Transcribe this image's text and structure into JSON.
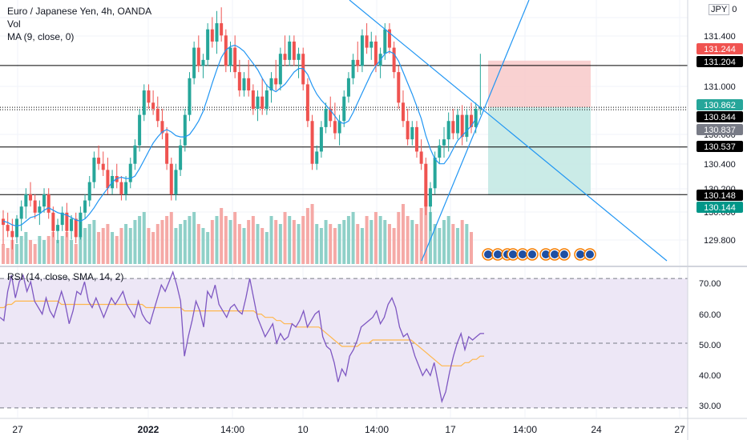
{
  "header": {
    "symbol_line": "Euro / Japanese Yen, 4h, OANDA",
    "vol_label": "Vol",
    "ma_label": "MA (9, close, 0)",
    "currency_label": "JPY",
    "currency_suffix": "0"
  },
  "colors": {
    "up": "#26a69a",
    "down": "#ef5350",
    "up_vol": "#8fd0c8",
    "down_vol": "#f5a9a6",
    "ma": "#2196f3",
    "trendline": "#2962ff",
    "rsi_line": "#7e57c2",
    "rsi_sma": "#ffb74d",
    "rsi_band": "#ede7f6",
    "stop_zone": "#f8c9c9",
    "target_zone": "#c4e9e4",
    "hline": "#000000"
  },
  "chart_data": [
    {
      "type": "candlestick",
      "title": "Euro / Japanese Yen, 4h, OANDA",
      "ylim": [
        129.58,
        131.74
      ],
      "price_ticks": [
        "131.400",
        "131.000",
        "130.600",
        "130.400",
        "130.200",
        "130.000",
        "129.800"
      ],
      "time_ticks": [
        "27",
        "2022",
        "14:00",
        "10",
        "14:00",
        "17",
        "14:00",
        "24",
        "27"
      ],
      "ohlc": [
        [
          129.95,
          130.02,
          129.74,
          129.9
        ],
        [
          129.9,
          130.0,
          129.8,
          129.85
        ],
        [
          129.85,
          129.95,
          129.7,
          129.8
        ],
        [
          129.8,
          129.98,
          129.75,
          129.95
        ],
        [
          129.95,
          130.1,
          129.85,
          130.05
        ],
        [
          130.05,
          130.2,
          129.95,
          130.15
        ],
        [
          130.15,
          130.25,
          130.05,
          130.1
        ],
        [
          130.1,
          130.15,
          129.95,
          130.0
        ],
        [
          130.0,
          130.1,
          129.9,
          130.05
        ],
        [
          130.05,
          130.2,
          130.0,
          130.15
        ],
        [
          130.15,
          130.2,
          129.95,
          130.0
        ],
        [
          130.0,
          130.05,
          129.8,
          129.85
        ],
        [
          129.85,
          129.95,
          129.75,
          129.9
        ],
        [
          129.9,
          130.05,
          129.85,
          130.0
        ],
        [
          130.0,
          130.08,
          129.8,
          129.85
        ],
        [
          129.85,
          129.98,
          129.78,
          129.95
        ],
        [
          129.95,
          130.0,
          129.75,
          129.8
        ],
        [
          129.8,
          130.05,
          129.78,
          130.0
        ],
        [
          130.0,
          130.15,
          129.95,
          130.1
        ],
        [
          130.1,
          130.3,
          130.05,
          130.25
        ],
        [
          130.25,
          130.5,
          130.2,
          130.45
        ],
        [
          130.45,
          130.55,
          130.35,
          130.4
        ],
        [
          130.4,
          130.5,
          130.3,
          130.35
        ],
        [
          130.35,
          130.45,
          130.15,
          130.2
        ],
        [
          130.2,
          130.35,
          130.15,
          130.3
        ],
        [
          130.3,
          130.4,
          130.2,
          130.25
        ],
        [
          130.25,
          130.3,
          130.1,
          130.15
        ],
        [
          130.15,
          130.3,
          130.1,
          130.25
        ],
        [
          130.25,
          130.45,
          130.2,
          130.4
        ],
        [
          130.4,
          130.6,
          130.35,
          130.55
        ],
        [
          130.55,
          130.85,
          130.5,
          130.8
        ],
        [
          130.8,
          131.05,
          130.75,
          131.0
        ],
        [
          131.0,
          131.05,
          130.85,
          130.9
        ],
        [
          130.9,
          131.0,
          130.8,
          130.85
        ],
        [
          130.85,
          130.95,
          130.7,
          130.75
        ],
        [
          130.75,
          130.85,
          130.6,
          130.65
        ],
        [
          130.65,
          130.7,
          130.35,
          130.4
        ],
        [
          130.4,
          130.45,
          130.1,
          130.15
        ],
        [
          130.15,
          130.4,
          130.1,
          130.35
        ],
        [
          130.35,
          130.6,
          130.3,
          130.55
        ],
        [
          130.55,
          130.85,
          130.5,
          130.8
        ],
        [
          130.8,
          131.15,
          130.75,
          131.1
        ],
        [
          131.1,
          131.4,
          131.05,
          131.35
        ],
        [
          131.35,
          131.45,
          131.15,
          131.2
        ],
        [
          131.2,
          131.3,
          131.1,
          131.25
        ],
        [
          131.25,
          131.55,
          131.2,
          131.5
        ],
        [
          131.5,
          131.6,
          131.35,
          131.4
        ],
        [
          131.4,
          131.65,
          131.3,
          131.55
        ],
        [
          131.55,
          131.68,
          131.4,
          131.45
        ],
        [
          131.45,
          131.5,
          131.15,
          131.2
        ],
        [
          131.2,
          131.4,
          131.15,
          131.35
        ],
        [
          131.35,
          131.45,
          131.1,
          131.15
        ],
        [
          131.15,
          131.25,
          130.95,
          131.0
        ],
        [
          131.0,
          131.15,
          130.95,
          131.1
        ],
        [
          131.1,
          131.25,
          130.95,
          131.0
        ],
        [
          131.0,
          131.05,
          130.8,
          130.85
        ],
        [
          130.85,
          131.0,
          130.75,
          130.95
        ],
        [
          130.95,
          131.1,
          130.8,
          130.85
        ],
        [
          130.85,
          131.05,
          130.8,
          131.0
        ],
        [
          131.0,
          131.15,
          130.9,
          131.1
        ],
        [
          131.1,
          131.25,
          131.0,
          131.05
        ],
        [
          131.05,
          131.35,
          131.0,
          131.3
        ],
        [
          131.3,
          131.45,
          131.2,
          131.25
        ],
        [
          131.25,
          131.45,
          131.2,
          131.4
        ],
        [
          131.4,
          131.45,
          131.2,
          131.25
        ],
        [
          131.25,
          131.35,
          131.1,
          131.3
        ],
        [
          131.3,
          131.35,
          131.0,
          131.05
        ],
        [
          131.05,
          131.1,
          130.7,
          130.75
        ],
        [
          130.75,
          130.8,
          130.35,
          130.4
        ],
        [
          130.4,
          130.55,
          130.35,
          130.5
        ],
        [
          130.5,
          130.75,
          130.45,
          130.7
        ],
        [
          130.7,
          130.9,
          130.65,
          130.85
        ],
        [
          130.85,
          130.95,
          130.7,
          130.75
        ],
        [
          130.75,
          130.9,
          130.6,
          130.65
        ],
        [
          130.65,
          130.8,
          130.55,
          130.75
        ],
        [
          130.75,
          131.0,
          130.7,
          130.95
        ],
        [
          130.95,
          131.15,
          130.9,
          131.1
        ],
        [
          131.1,
          131.3,
          131.05,
          131.25
        ],
        [
          131.25,
          131.4,
          131.15,
          131.2
        ],
        [
          131.2,
          131.5,
          131.15,
          131.45
        ],
        [
          131.45,
          131.55,
          131.3,
          131.35
        ],
        [
          131.35,
          131.48,
          131.25,
          131.4
        ],
        [
          131.4,
          131.45,
          131.15,
          131.2
        ],
        [
          131.2,
          131.35,
          131.1,
          131.3
        ],
        [
          131.3,
          131.55,
          131.25,
          131.5
        ],
        [
          131.5,
          131.55,
          131.3,
          131.35
        ],
        [
          131.35,
          131.4,
          131.1,
          131.15
        ],
        [
          131.15,
          131.2,
          130.85,
          130.9
        ],
        [
          130.9,
          131.0,
          130.7,
          130.75
        ],
        [
          130.75,
          130.85,
          130.55,
          130.6
        ],
        [
          130.6,
          130.75,
          130.55,
          130.7
        ],
        [
          130.7,
          130.75,
          130.45,
          130.5
        ],
        [
          130.5,
          130.6,
          130.35,
          130.4
        ],
        [
          130.4,
          130.45,
          129.98,
          130.05
        ],
        [
          130.05,
          130.25,
          129.85,
          130.2
        ],
        [
          130.2,
          130.5,
          130.15,
          130.45
        ],
        [
          130.45,
          130.6,
          130.4,
          130.55
        ],
        [
          130.55,
          130.7,
          130.45,
          130.6
        ],
        [
          130.6,
          130.82,
          130.5,
          130.75
        ],
        [
          130.75,
          130.85,
          130.6,
          130.65
        ],
        [
          130.65,
          130.85,
          130.6,
          130.8
        ],
        [
          130.8,
          130.88,
          130.55,
          130.62
        ],
        [
          130.62,
          130.85,
          130.58,
          130.8
        ],
        [
          130.8,
          130.9,
          130.65,
          130.7
        ],
        [
          130.7,
          130.9,
          130.65,
          130.85
        ],
        [
          130.85,
          131.3,
          130.8,
          130.86
        ]
      ],
      "moving_average": {
        "name": "MA (9, close, 0)",
        "values": [
          129.93,
          129.92,
          129.9,
          129.89,
          129.9,
          129.93,
          129.96,
          129.97,
          129.99,
          130.02,
          130.04,
          130.02,
          130.0,
          129.99,
          129.98,
          129.96,
          129.94,
          129.93,
          129.95,
          129.99,
          130.04,
          130.1,
          130.15,
          130.2,
          130.25,
          130.28,
          130.29,
          130.28,
          130.28,
          130.3,
          130.36,
          130.43,
          130.5,
          130.57,
          130.62,
          130.66,
          130.68,
          130.66,
          130.63,
          130.62,
          130.62,
          130.64,
          130.69,
          130.75,
          130.83,
          130.94,
          131.06,
          131.17,
          131.27,
          131.33,
          131.36,
          131.37,
          131.35,
          131.32,
          131.27,
          131.22,
          131.17,
          131.1,
          131.04,
          131.01,
          130.99,
          131.02,
          131.05,
          131.1,
          131.15,
          131.18,
          131.18,
          131.13,
          131.04,
          130.97,
          130.92,
          130.88,
          130.84,
          130.79,
          130.74,
          130.73,
          130.75,
          130.82,
          130.9,
          130.98,
          131.06,
          131.14,
          131.2,
          131.25,
          131.3,
          131.32,
          131.3,
          131.24,
          131.15,
          131.06,
          130.97,
          130.87,
          130.77,
          130.63,
          130.52,
          130.44,
          130.4,
          130.4,
          130.45,
          130.52,
          130.59,
          130.63,
          130.67,
          130.71,
          130.77
        ]
      },
      "volume": [
        5,
        4,
        6,
        5,
        7,
        8,
        6,
        5,
        7,
        6,
        7,
        8,
        6,
        7,
        8,
        6,
        5,
        7,
        9,
        10,
        11,
        8,
        9,
        10,
        8,
        7,
        9,
        10,
        9,
        11,
        12,
        13,
        9,
        8,
        10,
        11,
        12,
        13,
        9,
        10,
        11,
        12,
        13,
        10,
        9,
        8,
        11,
        12,
        14,
        12,
        11,
        13,
        10,
        9,
        11,
        12,
        10,
        9,
        8,
        12,
        11,
        10,
        13,
        12,
        11,
        10,
        12,
        14,
        15,
        10,
        9,
        11,
        10,
        9,
        10,
        11,
        12,
        13,
        10,
        9,
        12,
        11,
        13,
        12,
        11,
        10,
        9,
        13,
        15,
        12,
        11,
        10,
        14,
        16,
        13,
        10,
        9,
        11,
        12,
        10,
        9,
        11,
        10,
        8
      ],
      "horizontal_levels": [
        131.204,
        130.537,
        130.148
      ],
      "position": {
        "entry": 130.862,
        "stop": 131.244,
        "target": 130.144
      },
      "price_labels": [
        {
          "text": "131.244",
          "kind": "stop"
        },
        {
          "text": "131.204",
          "kind": "level"
        },
        {
          "text": "130.862",
          "kind": "last"
        },
        {
          "text": "130.844",
          "kind": "level-dark"
        },
        {
          "text": "130.837",
          "kind": "gray"
        },
        {
          "text": "130.537",
          "kind": "level"
        },
        {
          "text": "130.148",
          "kind": "level"
        },
        {
          "text": "130.144",
          "kind": "target"
        }
      ]
    },
    {
      "type": "line",
      "title": "RSI (14, close, SMA, 14, 2)",
      "ylim": [
        27,
        73
      ],
      "y_ticks": [
        "70.00",
        "60.00",
        "50.00",
        "40.00",
        "30.00"
      ],
      "bands": [
        30,
        50,
        70
      ],
      "series": [
        {
          "name": "RSI",
          "values": [
            58,
            57,
            66,
            71,
            64,
            69,
            71,
            66,
            69,
            63,
            61,
            59,
            64,
            60,
            58,
            62,
            66,
            62,
            56,
            60,
            66,
            65,
            69,
            63,
            61,
            64,
            61,
            58,
            61,
            64,
            62,
            64,
            66,
            62,
            60,
            58,
            63,
            59,
            57,
            56,
            60,
            64,
            68,
            66,
            69,
            72,
            68,
            63,
            46,
            52,
            57,
            63,
            60,
            55,
            66,
            64,
            68,
            62,
            60,
            58,
            61,
            62,
            60,
            59,
            64,
            70,
            64,
            58,
            55,
            52,
            54,
            56,
            50,
            53,
            51,
            52,
            56,
            55,
            57,
            60,
            55,
            57,
            59,
            60,
            52,
            49,
            48,
            44,
            38,
            42,
            40,
            46,
            48,
            51,
            55,
            56,
            57,
            58,
            60,
            56,
            58,
            62,
            64,
            61,
            55,
            52,
            53,
            50,
            46,
            43,
            40,
            42,
            40,
            44,
            38,
            32,
            35,
            41,
            46,
            50,
            53,
            48,
            52,
            51,
            52,
            53,
            53
          ]
        },
        {
          "name": "SMA",
          "values": [
            61,
            61,
            62,
            62,
            63,
            63,
            63,
            63,
            63,
            63,
            63,
            63,
            63,
            63,
            63,
            63,
            62,
            62,
            62,
            62,
            62,
            62,
            62,
            62,
            62,
            62,
            62,
            62,
            62,
            62,
            62,
            62,
            62,
            62,
            62,
            62,
            62,
            62,
            61,
            61,
            61,
            61,
            61,
            61,
            61,
            61,
            61,
            61,
            60,
            60,
            60,
            60,
            60,
            60,
            60,
            60,
            60,
            60,
            60,
            60,
            60,
            60,
            60,
            60,
            60,
            60,
            60,
            59,
            59,
            58,
            58,
            58,
            57,
            57,
            56,
            56,
            56,
            55,
            55,
            55,
            55,
            55,
            55,
            55,
            54,
            53,
            52,
            51,
            50,
            49,
            49,
            49,
            49,
            49,
            50,
            50,
            50,
            51,
            51,
            51,
            51,
            51,
            51,
            51,
            51,
            51,
            51,
            51,
            50,
            49,
            48,
            47,
            46,
            45,
            44,
            43,
            43,
            43,
            43,
            43,
            43,
            44,
            44,
            45,
            45,
            46,
            46
          ]
        }
      ]
    }
  ]
}
